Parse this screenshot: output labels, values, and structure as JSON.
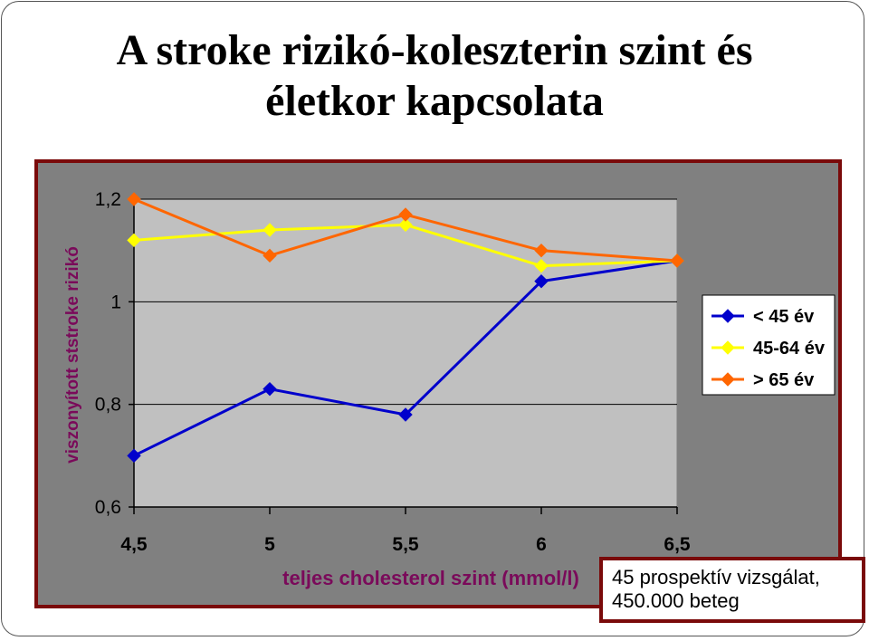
{
  "title": {
    "line1": "A stroke rizikó-koleszterin szint és",
    "line2": "életkor kapcsolata"
  },
  "note": {
    "line1": "45 prospektív vizsgálat,",
    "line2": "450.000 beteg"
  },
  "chart_data": {
    "type": "line",
    "xlabel": "teljes cholesterol szint (mmol/l)",
    "ylabel": "viszonyított ststroke rizikó",
    "x": [
      4.5,
      5,
      5.5,
      6,
      6.5
    ],
    "x_tick_labels": [
      "4,5",
      "5",
      "5,5",
      "6",
      "6,5"
    ],
    "y_ticks": [
      0.6,
      0.8,
      1,
      1.2
    ],
    "y_tick_labels": [
      "0,6",
      "0,8",
      "1",
      "1,2"
    ],
    "xlim": [
      4.5,
      6.5
    ],
    "ylim": [
      0.6,
      1.2
    ],
    "grid": true,
    "legend_position": "right",
    "series": [
      {
        "name": "< 45 év",
        "color": "#0000cc",
        "marker": "diamond",
        "values": [
          0.7,
          0.83,
          0.78,
          1.04,
          1.08
        ]
      },
      {
        "name": "45-64 év",
        "color": "#ffff00",
        "marker": "diamond",
        "values": [
          1.12,
          1.14,
          1.15,
          1.07,
          1.08
        ]
      },
      {
        "name": "> 65 év",
        "color": "#ff6600",
        "marker": "diamond",
        "values": [
          1.2,
          1.09,
          1.17,
          1.1,
          1.08
        ]
      }
    ]
  }
}
